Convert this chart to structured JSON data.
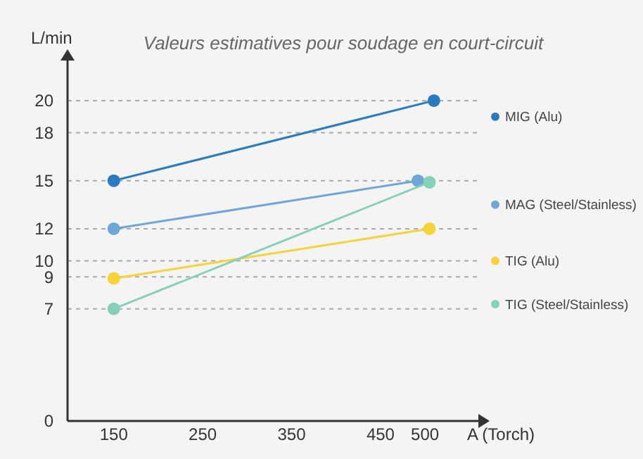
{
  "chart_data": {
    "type": "line",
    "title": "Valeurs estimatives pour soudage en court-circuit",
    "xlabel": "A (Torch)",
    "ylabel": "L/min",
    "series": [
      {
        "name": "MIG (Alu)",
        "color": "#2a7bc1",
        "x": [
          150,
          510
        ],
        "values": [
          15,
          20
        ]
      },
      {
        "name": "MAG (Steel/Stainless)",
        "color": "#6fa6d8",
        "x": [
          150,
          492
        ],
        "values": [
          12,
          15
        ]
      },
      {
        "name": "TIG (Alu)",
        "color": "#f6d336",
        "x": [
          150,
          505
        ],
        "values": [
          8.9,
          12
        ]
      },
      {
        "name": "TIG (Steel/Stainless)",
        "color": "#85d0b8",
        "x": [
          150,
          505
        ],
        "values": [
          7,
          14.9
        ]
      }
    ],
    "xlim": [
      98,
      560
    ],
    "xticks": [
      150,
      250,
      350,
      450,
      500
    ],
    "ylim": [
      0,
      22.5
    ],
    "yticks": [
      0,
      7,
      9,
      10,
      12,
      15,
      18,
      20
    ],
    "grid": "y",
    "legend": "right",
    "marker": "circle",
    "line_style": "solid"
  }
}
